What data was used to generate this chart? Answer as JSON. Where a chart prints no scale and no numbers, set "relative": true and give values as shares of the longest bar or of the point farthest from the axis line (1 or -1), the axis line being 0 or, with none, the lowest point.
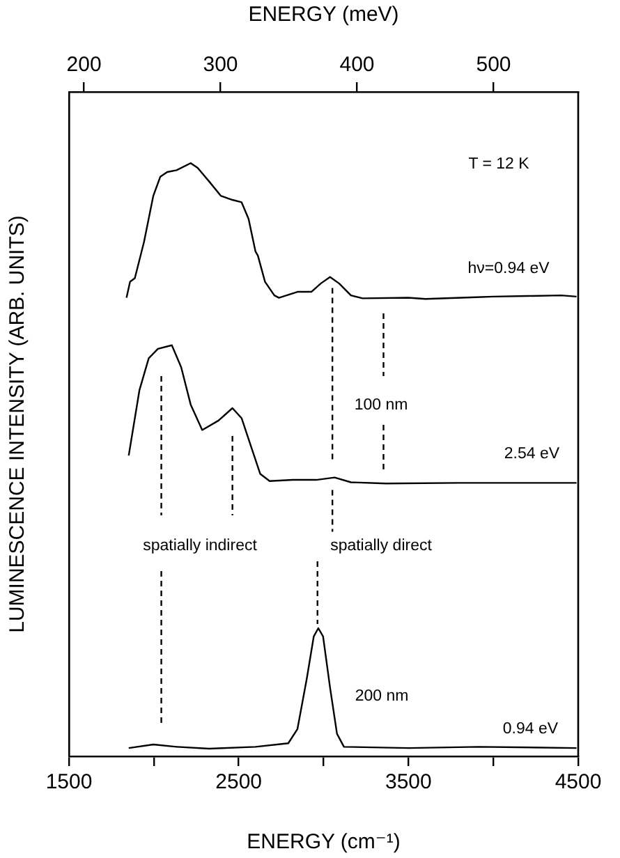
{
  "chart_data": {
    "type": "line",
    "relative": true,
    "xlabel": "ENERGY (cm⁻¹)",
    "x2label": "ENERGY (meV)",
    "ylabel": "LUMINESCENCE INTENSITY (ARB. UNITS)",
    "xlim": [
      1500,
      4500
    ],
    "xticks": [
      1500,
      {
        "value": 2000,
        "label": null
      },
      2500,
      {
        "value": 3000,
        "label": null
      },
      3500,
      {
        "value": 4000,
        "label": null
      },
      4500
    ],
    "x2lim": [
      189,
      562
    ],
    "x2ticks": [
      200,
      300,
      400,
      500
    ],
    "grid": false,
    "legend": false,
    "marker": "none",
    "series": [
      {
        "color": "#000000",
        "line_style": "solid",
        "x": [
          1839,
          1860,
          1888,
          1942,
          1997,
          2038,
          2079,
          2134,
          2217,
          2258,
          2326,
          2394,
          2463,
          2517,
          2558,
          2599,
          2613,
          2655,
          2710,
          2737,
          2846,
          2928,
          2983,
          3038,
          3092,
          3161,
          3230,
          3500,
          3600,
          3900,
          4000,
          4200,
          4400,
          4490
        ],
        "values": [
          0.773,
          0.8,
          0.806,
          0.867,
          0.945,
          0.977,
          0.985,
          0.988,
          1.0,
          0.992,
          0.969,
          0.945,
          0.938,
          0.934,
          0.906,
          0.851,
          0.844,
          0.8,
          0.777,
          0.773,
          0.783,
          0.783,
          0.797,
          0.808,
          0.797,
          0.777,
          0.772,
          0.773,
          0.771,
          0.774,
          0.775,
          0.776,
          0.777,
          0.775
        ]
      },
      {
        "color": "#000000",
        "line_style": "solid",
        "x": [
          1852,
          1915,
          1970,
          2024,
          2106,
          2161,
          2217,
          2285,
          2381,
          2463,
          2517,
          2572,
          2627,
          2682,
          2819,
          2956,
          3065,
          3161,
          3367,
          3800,
          4200,
          4490
        ],
        "values": [
          0.507,
          0.617,
          0.671,
          0.687,
          0.693,
          0.656,
          0.593,
          0.55,
          0.566,
          0.587,
          0.57,
          0.523,
          0.476,
          0.464,
          0.466,
          0.466,
          0.47,
          0.462,
          0.46,
          0.461,
          0.461,
          0.461
        ]
      },
      {
        "color": "#000000",
        "line_style": "solid",
        "x": [
          1852,
          1997,
          2134,
          2326,
          2599,
          2792,
          2846,
          2901,
          2942,
          2969,
          2997,
          3038,
          3079,
          3120,
          3503,
          3914,
          4490
        ],
        "values": [
          0.014,
          0.02,
          0.016,
          0.013,
          0.016,
          0.022,
          0.046,
          0.131,
          0.202,
          0.216,
          0.202,
          0.116,
          0.038,
          0.016,
          0.014,
          0.016,
          0.014
        ]
      }
    ],
    "ref_lines": [
      {
        "axis": "x",
        "value": 2044,
        "color": "#000000",
        "line_style": "dashed"
      },
      {
        "axis": "x",
        "value": 2463,
        "color": "#000000",
        "line_style": "dashed"
      },
      {
        "axis": "x",
        "value": 3052,
        "color": "#000000",
        "line_style": "dashed"
      },
      {
        "axis": "x",
        "value": 2964,
        "color": "#000000",
        "line_style": "dashed"
      },
      {
        "axis": "x",
        "value": 3353,
        "color": "#000000",
        "line_style": "dashed"
      }
    ],
    "annotations": [
      "T = 12 K",
      "hν=0.94 eV",
      "100 nm",
      "2.54 eV",
      "spatially indirect",
      "spatially direct",
      "200 nm",
      "0.94 eV"
    ]
  }
}
